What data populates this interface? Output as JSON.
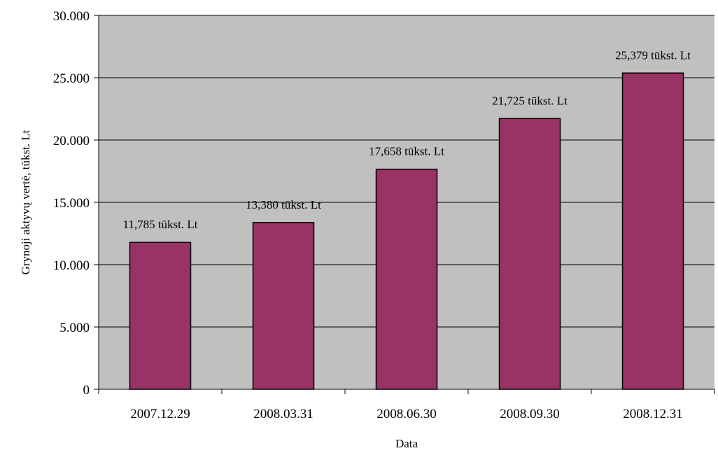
{
  "chart_data": {
    "type": "bar",
    "categories": [
      "2007.12.29",
      "2008.03.31",
      "2008.06.30",
      "2008.09.30",
      "2008.12.31"
    ],
    "values": [
      11785,
      13380,
      17658,
      21725,
      25379
    ],
    "data_labels": [
      "11,785 tūkst. Lt",
      "13,380 tūkst. Lt",
      "17,658 tūkst. Lt",
      "21,725 tūkst. Lt",
      "25,379 tūkst. Lt"
    ],
    "title": "",
    "xlabel": "Data",
    "ylabel": "Grynoji aktyvų vertė, tūkst. Lt",
    "ylim": [
      0,
      30000
    ],
    "yticks": [
      0,
      5000,
      10000,
      15000,
      20000,
      25000,
      30000
    ],
    "ytick_labels": [
      "0",
      "5.000",
      "10.000",
      "15.000",
      "20.000",
      "25.000",
      "30.000"
    ],
    "grid": true,
    "legend": "none",
    "colors": {
      "bar": "#993366",
      "plot_area": "#c0c0c0",
      "gridline": "#000000"
    }
  }
}
